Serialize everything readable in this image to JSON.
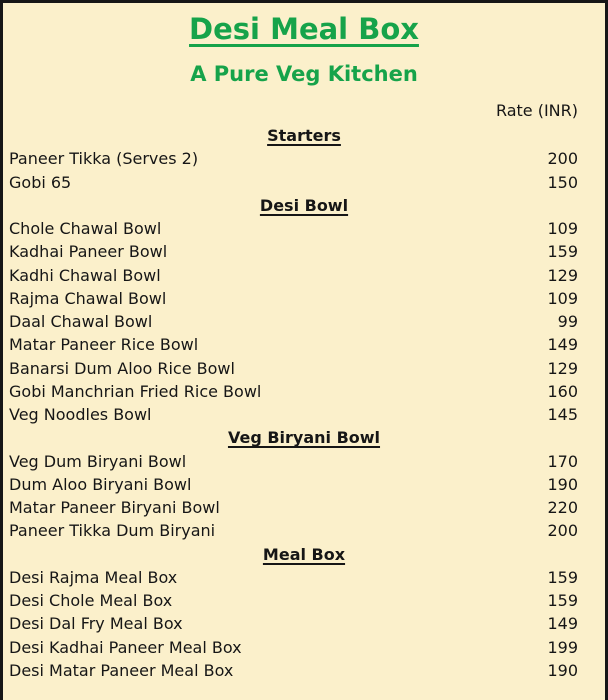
{
  "page": {
    "background_color": "#FBF0CB",
    "border_color": "#161616",
    "accent_green": "#16a34a",
    "text_color": "#161616"
  },
  "header": {
    "title": "Desi Meal Box",
    "subtitle": "A Pure Veg Kitchen",
    "rate_label": "Rate (INR)"
  },
  "menu": {
    "sections": [
      {
        "name": "Starters",
        "items": [
          {
            "name": "Paneer Tikka (Serves 2)",
            "price": "200"
          },
          {
            "name": "Gobi 65",
            "price": "150"
          }
        ]
      },
      {
        "name": "Desi Bowl",
        "items": [
          {
            "name": "Chole Chawal Bowl",
            "price": "109"
          },
          {
            "name": "Kadhai Paneer Bowl",
            "price": "159"
          },
          {
            "name": "Kadhi Chawal Bowl",
            "price": "129"
          },
          {
            "name": "Rajma Chawal Bowl",
            "price": "109"
          },
          {
            "name": "Daal Chawal Bowl",
            "price": "99"
          },
          {
            "name": "Matar Paneer Rice Bowl",
            "price": "149"
          },
          {
            "name": "Banarsi Dum Aloo Rice Bowl",
            "price": "129"
          },
          {
            "name": "Gobi Manchrian Fried Rice Bowl",
            "price": "160"
          },
          {
            "name": "Veg Noodles Bowl",
            "price": "145"
          }
        ]
      },
      {
        "name": "Veg Biryani Bowl",
        "items": [
          {
            "name": "Veg Dum Biryani Bowl",
            "price": "170"
          },
          {
            "name": "Dum Aloo Biryani Bowl",
            "price": "190"
          },
          {
            "name": "Matar Paneer Biryani Bowl",
            "price": "220"
          },
          {
            "name": "Paneer Tikka Dum Biryani",
            "price": "200"
          }
        ]
      },
      {
        "name": "Meal Box",
        "items": [
          {
            "name": "Desi Rajma Meal Box",
            "price": "159"
          },
          {
            "name": "Desi Chole Meal Box",
            "price": "159"
          },
          {
            "name": "Desi Dal Fry Meal Box",
            "price": "149"
          },
          {
            "name": "Desi Kadhai Paneer Meal Box",
            "price": "199"
          },
          {
            "name": "Desi Matar Paneer Meal Box",
            "price": "190"
          }
        ]
      }
    ]
  }
}
